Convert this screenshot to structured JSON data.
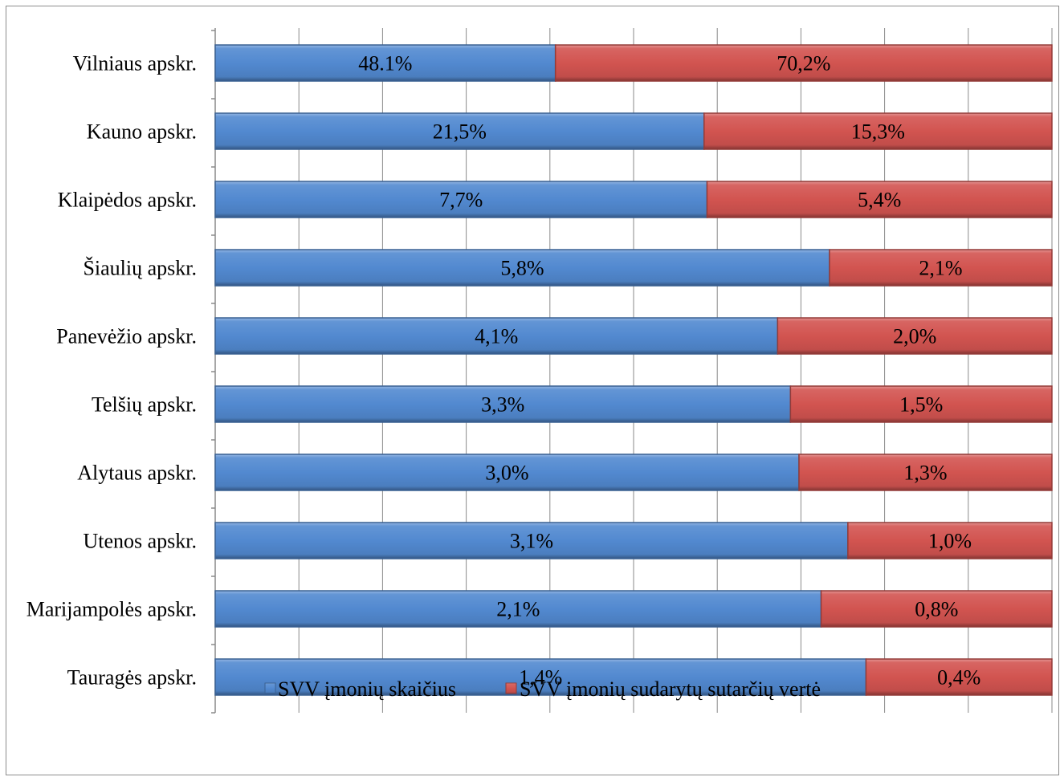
{
  "chart_data": {
    "type": "bar",
    "orientation": "horizontal",
    "stacking": "percent",
    "categories": [
      "Vilniaus apskr.",
      "Kauno apskr.",
      "Klaipėdos apskr.",
      "Šiaulių apskr.",
      "Panevėžio apskr.",
      "Telšių apskr.",
      "Alytaus apskr.",
      "Utenos apskr.",
      "Marijampolės apskr.",
      "Tauragės apskr."
    ],
    "series": [
      {
        "name": "SVV įmonių skaičius",
        "color": "#5289D0",
        "values": [
          48.1,
          21.5,
          7.7,
          5.8,
          4.1,
          3.3,
          3.0,
          3.1,
          2.1,
          1.4
        ],
        "labels": [
          "48.1%",
          "21,5%",
          "7,7%",
          "5,8%",
          "4,1%",
          "3,3%",
          "3,0%",
          "3,1%",
          "2,1%",
          "1,4%"
        ]
      },
      {
        "name": "SVV įmonių sudarytų sutarčių vertė",
        "color": "#D25450",
        "values": [
          70.2,
          15.3,
          5.4,
          2.1,
          2.0,
          1.5,
          1.3,
          1.0,
          0.8,
          0.4
        ],
        "labels": [
          "70,2%",
          "15,3%",
          "5,4%",
          "2,1%",
          "2,0%",
          "1,5%",
          "1,3%",
          "1,0%",
          "0,8%",
          "0,4%"
        ]
      }
    ],
    "xlim": [
      0,
      100
    ],
    "x_grid_step": 10,
    "x_tick_labels_shown": false,
    "grid": "vertical",
    "legend": "bottom"
  }
}
